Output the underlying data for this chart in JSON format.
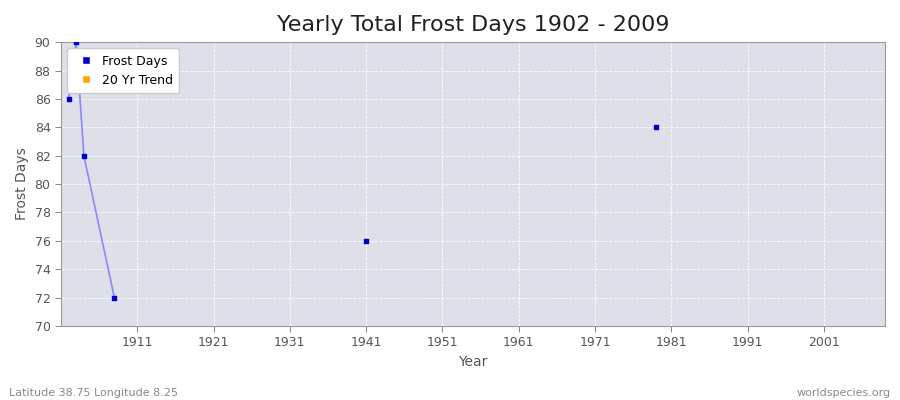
{
  "title": "Yearly Total Frost Days 1902 - 2009",
  "xlabel": "Year",
  "ylabel": "Frost Days",
  "xlim": [
    1901,
    2009
  ],
  "ylim": [
    70,
    90
  ],
  "yticks": [
    70,
    72,
    74,
    76,
    78,
    80,
    82,
    84,
    86,
    88,
    90
  ],
  "xticks": [
    1911,
    1921,
    1931,
    1941,
    1951,
    1961,
    1971,
    1981,
    1991,
    2001
  ],
  "frost_line_x": [
    1902,
    1903
  ],
  "frost_line_y": [
    86,
    90
  ],
  "frost_line2_x": [
    1903,
    1904
  ],
  "frost_line2_y": [
    90,
    82
  ],
  "frost_scatter_x": [
    1902,
    1903,
    1904,
    1908,
    1941,
    1979
  ],
  "frost_scatter_y": [
    86,
    90,
    82,
    72,
    76,
    84
  ],
  "frost_color": "#0000cc",
  "frost_color_light": "#8888ff",
  "trend_color": "#ffa500",
  "background_color": "#dde0e8",
  "grid_color": "#ffffff",
  "legend_labels": [
    "Frost Days",
    "20 Yr Trend"
  ],
  "subtitle_left": "Latitude 38.75 Longitude 8.25",
  "subtitle_right": "worldspecies.org",
  "title_fontsize": 16,
  "axis_label_fontsize": 10,
  "tick_fontsize": 9,
  "tick_color": "#555555",
  "spine_color": "#999999"
}
